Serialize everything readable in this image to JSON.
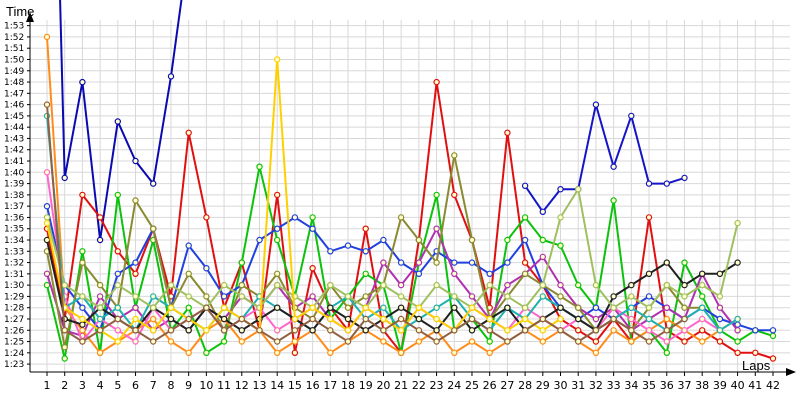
{
  "chart_data": {
    "type": "line",
    "xlabel": "Laps",
    "ylabel": "Time",
    "x_ticks": [
      1,
      2,
      3,
      4,
      5,
      6,
      7,
      8,
      9,
      10,
      11,
      12,
      13,
      14,
      15,
      16,
      17,
      18,
      19,
      20,
      21,
      22,
      23,
      24,
      25,
      26,
      27,
      28,
      29,
      30,
      31,
      32,
      33,
      34,
      35,
      36,
      37,
      38,
      39,
      40,
      41,
      42
    ],
    "y_ticks": [
      "1:23",
      "1:24",
      "1:25",
      "1:26",
      "1:27",
      "1:28",
      "1:29",
      "1:30",
      "1:31",
      "1:32",
      "1:33",
      "1:34",
      "1:35",
      "1:36",
      "1:37",
      "1:38",
      "1:39",
      "1:40",
      "1:41",
      "1:42",
      "1:43",
      "1:44",
      "1:45",
      "1:46",
      "1:47",
      "1:48",
      "1:49",
      "1:50",
      "1:51",
      "1:52",
      "1:53"
    ],
    "ylim_seconds": [
      82.3,
      113.5
    ],
    "xlim": [
      1,
      42
    ],
    "grid": true,
    "legend": "none",
    "series": [
      {
        "color": "#0a0ab0",
        "values": [
          160,
          99.5,
          108,
          94,
          104.5,
          101,
          99,
          108.5,
          120,
          null,
          null,
          null,
          null,
          null,
          null,
          null,
          null,
          null,
          null,
          null,
          null,
          null,
          null,
          null,
          null,
          null,
          null,
          null,
          null,
          null,
          null,
          null,
          null,
          null,
          null,
          null,
          null,
          null,
          null,
          null,
          null,
          null
        ]
      },
      {
        "color": "#1515c8",
        "values": [
          null,
          null,
          null,
          null,
          null,
          null,
          null,
          null,
          null,
          null,
          null,
          null,
          null,
          null,
          null,
          null,
          null,
          null,
          null,
          null,
          null,
          null,
          null,
          null,
          null,
          null,
          null,
          98.8,
          96.5,
          98.5,
          98.5,
          106,
          100.5,
          105,
          99,
          99,
          99.5,
          null,
          null,
          null,
          null,
          null
        ]
      },
      {
        "color": "#e01010",
        "values": [
          95,
          87,
          98,
          96,
          93,
          91,
          95,
          89,
          103.5,
          96,
          88,
          92,
          86,
          98,
          84,
          91.5,
          88,
          86,
          95,
          86,
          84,
          94,
          108,
          98,
          94,
          88,
          103.5,
          92,
          90,
          87,
          86,
          85,
          87,
          85,
          96,
          86,
          85,
          86,
          85,
          84,
          84,
          83.5
        ]
      },
      {
        "color": "#0cc20c",
        "values": [
          90,
          83.5,
          93,
          84,
          98,
          88,
          94,
          86,
          88,
          84,
          85,
          92,
          100.5,
          94,
          89,
          96,
          87,
          89,
          91,
          90,
          84,
          92,
          98,
          86,
          87,
          85,
          94,
          96,
          94,
          93.5,
          90,
          88,
          97.5,
          85,
          86,
          84,
          92,
          89,
          86,
          85,
          86,
          85.5
        ]
      },
      {
        "color": "#2040e0",
        "values": [
          97,
          90,
          88,
          86,
          91,
          92,
          95,
          88,
          93.5,
          91.5,
          89,
          90,
          94,
          95,
          96,
          95,
          93,
          93.5,
          93,
          94,
          92,
          91,
          93,
          92,
          92,
          91,
          92,
          94,
          90,
          88,
          87,
          88,
          87,
          88,
          89,
          88,
          87,
          88,
          87,
          86.5,
          86,
          86
        ]
      },
      {
        "color": "#b030b0",
        "values": [
          91,
          86,
          85.5,
          89,
          87,
          88,
          86,
          87,
          86,
          88,
          87,
          89,
          88,
          90,
          88,
          89,
          87,
          86,
          88,
          92,
          90,
          92,
          95,
          91,
          89,
          87,
          90,
          91,
          92.5,
          90,
          88,
          87,
          88,
          86,
          87,
          88,
          87,
          91,
          88,
          86,
          null,
          null
        ]
      },
      {
        "color": "#8a8a30",
        "values": [
          93,
          84.5,
          92,
          90,
          88,
          97.5,
          95,
          88,
          91,
          89,
          86,
          90,
          89,
          91,
          88,
          87,
          90,
          88,
          89,
          90,
          96,
          94,
          92,
          101.5,
          94,
          87,
          89,
          91,
          90,
          89,
          88,
          86,
          87,
          86,
          88,
          90,
          88,
          88,
          null,
          null,
          null,
          null
        ]
      },
      {
        "color": "#ff8c1a",
        "values": [
          112,
          88,
          86,
          84,
          85,
          86,
          87,
          85,
          84,
          86,
          87,
          85,
          86,
          84,
          85,
          86,
          84,
          85,
          86,
          85,
          84,
          85,
          86,
          84,
          85,
          84,
          85,
          86,
          85,
          86,
          85,
          84,
          86,
          85,
          86,
          87,
          86,
          85,
          86,
          87,
          null,
          null
        ]
      },
      {
        "color": "#ff66cc",
        "values": [
          100,
          89,
          85,
          87,
          86,
          85,
          88,
          86,
          87,
          88,
          86,
          87,
          88,
          86,
          87,
          88,
          87,
          86,
          88,
          87,
          86,
          88,
          87,
          86,
          88,
          87,
          86,
          88,
          87,
          86,
          87,
          86,
          88,
          87,
          86,
          85,
          86,
          87,
          86,
          null,
          null,
          null
        ]
      },
      {
        "color": "#20b0b0",
        "values": [
          105,
          88,
          89,
          87,
          88,
          86,
          89,
          88,
          87,
          86,
          88,
          87,
          89,
          88,
          87,
          86,
          88,
          89,
          87,
          88,
          86,
          87,
          88,
          89,
          87,
          86,
          88,
          87,
          89,
          88,
          87,
          86,
          87,
          88,
          87,
          86,
          87,
          88,
          86,
          87,
          null,
          null
        ]
      },
      {
        "color": "#202020",
        "values": [
          94,
          87,
          86.5,
          88,
          87,
          86,
          88,
          87,
          86,
          88,
          87,
          86,
          87,
          88,
          87,
          86,
          88,
          87,
          86,
          87,
          88,
          87,
          86,
          88,
          86,
          87,
          88,
          86,
          87,
          88,
          87,
          86,
          89,
          90,
          91,
          92,
          90,
          91,
          91,
          92,
          null,
          null
        ]
      },
      {
        "color": "#a0c060",
        "values": [
          96,
          90,
          89,
          88,
          90,
          89,
          88,
          90,
          89,
          88,
          90,
          89,
          88,
          90,
          89,
          88,
          90,
          89,
          88,
          90,
          89,
          88,
          90,
          89,
          88,
          90,
          89,
          88,
          90,
          96,
          98.5,
          90,
          88,
          89,
          88,
          90,
          89,
          90,
          89,
          95.5,
          null,
          null
        ]
      },
      {
        "color": "#ffd000",
        "values": [
          95.5,
          88,
          87,
          86,
          85,
          87,
          86,
          88,
          87,
          86,
          88,
          87,
          86,
          110,
          87,
          88,
          87,
          86,
          88,
          87,
          86,
          88,
          87,
          86,
          88,
          87,
          86,
          87,
          86,
          87,
          null,
          null,
          null,
          null,
          null,
          null,
          null,
          null,
          null,
          null,
          null,
          null
        ]
      },
      {
        "color": "#906040",
        "values": [
          106,
          86,
          85,
          86,
          87,
          86,
          85,
          86,
          87,
          88,
          86,
          87,
          86,
          85,
          86,
          87,
          86,
          85,
          87,
          86,
          87,
          86,
          85,
          86,
          87,
          86,
          85,
          86,
          87,
          86,
          85,
          86,
          87,
          86,
          85,
          86,
          87,
          null,
          null,
          null,
          null,
          null
        ]
      }
    ]
  }
}
